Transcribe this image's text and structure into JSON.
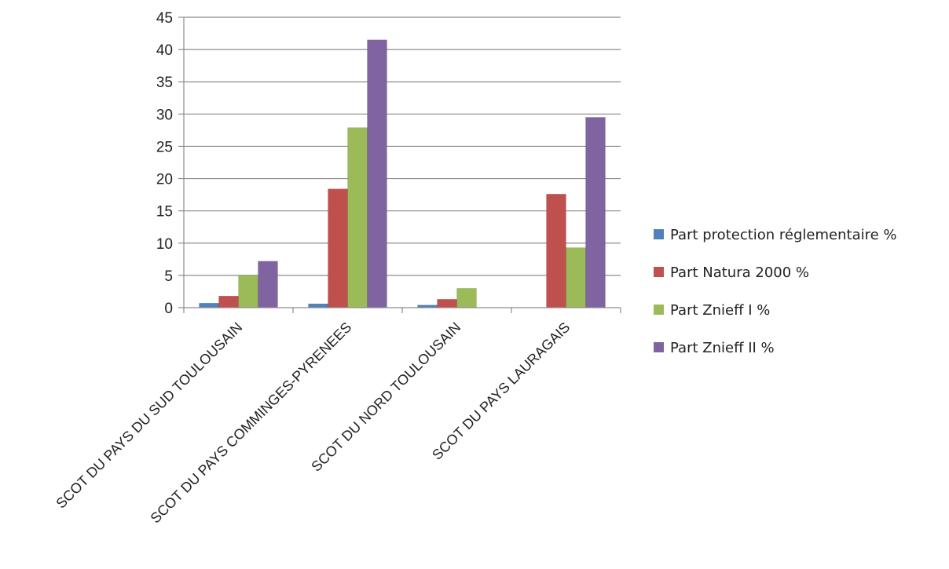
{
  "chart_data": {
    "type": "bar",
    "title": "",
    "xlabel": "",
    "ylabel": "",
    "ylim": [
      0,
      45
    ],
    "yticks": [
      0,
      5,
      10,
      15,
      20,
      25,
      30,
      35,
      40,
      45
    ],
    "grid": "horizontal",
    "legend_position": "right",
    "categories": [
      "SCOT DU PAYS DU SUD TOULOUSAIN",
      "SCOT DU PAYS COMMINGES-PYRENEES",
      "SCOT DU NORD TOULOUSAIN",
      "SCOT DU PAYS LAURAGAIS"
    ],
    "series": [
      {
        "name": "Part protection réglementaire %",
        "color": "#4F81BD",
        "values": [
          0.7,
          0.6,
          0.4,
          0
        ]
      },
      {
        "name": "Part Natura 2000  %",
        "color": "#C0504D",
        "values": [
          1.8,
          18.4,
          1.3,
          17.6
        ]
      },
      {
        "name": "Part Znieff I  %",
        "color": "#9BBB59",
        "values": [
          5.0,
          27.9,
          3.0,
          9.3
        ]
      },
      {
        "name": "Part Znieff II %",
        "color": "#8064A2",
        "values": [
          7.2,
          41.5,
          0,
          29.5
        ]
      }
    ]
  }
}
